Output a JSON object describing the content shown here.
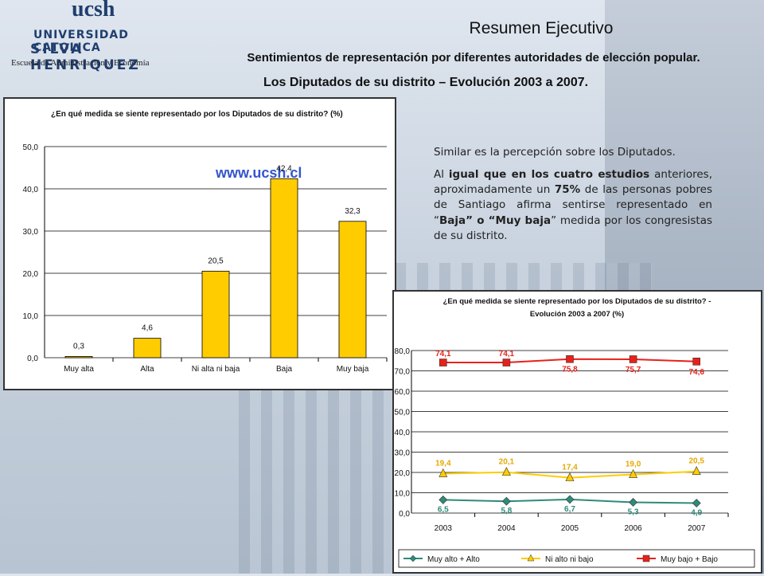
{
  "header": {
    "logo": {
      "ucsh": "ucsh",
      "line1": "UNIVERSIDAD CATOLICA",
      "line2": "SILVA HENRIQUEZ",
      "line3": "Escuela de Administración y Economía"
    },
    "title": "Resumen Ejecutivo",
    "subtitle1": "Sentimientos de representación por diferentes autoridades de elección popular.",
    "subtitle2": "Los Diputados de su distrito – Evolución 2003 a 2007."
  },
  "text": {
    "p1": "Similar es la percepción sobre los Diputados.",
    "p2_a": "Al ",
    "p2_b": "igual que en los cuatro estudios",
    "p2_c": " anteriores, aproximadamente un ",
    "p2_d": "75%",
    "p2_e": " de las personas pobres de Santiago afirma sentirse representado en “",
    "p2_f": "Baja",
    "p2_g": "” o “",
    "p2_h": "Muy baja",
    "p2_i": "” medida por los congresistas de su distrito."
  },
  "colors": {
    "bar": "#ffcc00",
    "series_green": "#2e8b7a",
    "series_yellow": "#ffcc00",
    "series_red": "#e8211a"
  },
  "chart_data": [
    {
      "type": "bar",
      "title": "¿En qué medida se siente representado por los Diputados de su distrito? (%)",
      "watermark": "www.ucsh.cl",
      "categories": [
        "Muy alta",
        "Alta",
        "Ni alta ni baja",
        "Baja",
        "Muy baja"
      ],
      "values": [
        0.3,
        4.6,
        20.5,
        42.4,
        32.3
      ],
      "value_labels": [
        "0,3",
        "4,6",
        "20,5",
        "42,4",
        "32,3"
      ],
      "ylim": [
        0,
        50
      ],
      "yticks": [
        "0,0",
        "10,0",
        "20,0",
        "30,0",
        "40,0",
        "50,0"
      ],
      "grid": true
    },
    {
      "type": "line",
      "title": "¿En qué medida se siente representado por los Diputados de su distrito? - Evolución 2003 a 2007 (%)",
      "x": [
        "2003",
        "2004",
        "2005",
        "2006",
        "2007"
      ],
      "ylim": [
        0,
        80
      ],
      "yticks": [
        "0,0",
        "10,0",
        "20,0",
        "30,0",
        "40,0",
        "50,0",
        "60,0",
        "70,0",
        "80,0"
      ],
      "grid": true,
      "legend": "bottom",
      "series": [
        {
          "name": "Muy alto + Alto",
          "values": [
            6.5,
            5.8,
            6.7,
            5.3,
            4.9
          ],
          "labels": [
            "6,5",
            "5,8",
            "6,7",
            "5,3",
            "4,9"
          ],
          "marker": "diamond"
        },
        {
          "name": "Ni alto ni bajo",
          "values": [
            19.4,
            20.1,
            17.4,
            19.0,
            20.5
          ],
          "labels": [
            "19,4",
            "20,1",
            "17,4",
            "19,0",
            "20,5"
          ],
          "marker": "triangle"
        },
        {
          "name": "Muy bajo + Bajo",
          "values": [
            74.1,
            74.1,
            75.8,
            75.7,
            74.6
          ],
          "labels": [
            "74,1",
            "74,1",
            "75,8",
            "75,7",
            "74,6"
          ],
          "marker": "square"
        }
      ]
    }
  ]
}
